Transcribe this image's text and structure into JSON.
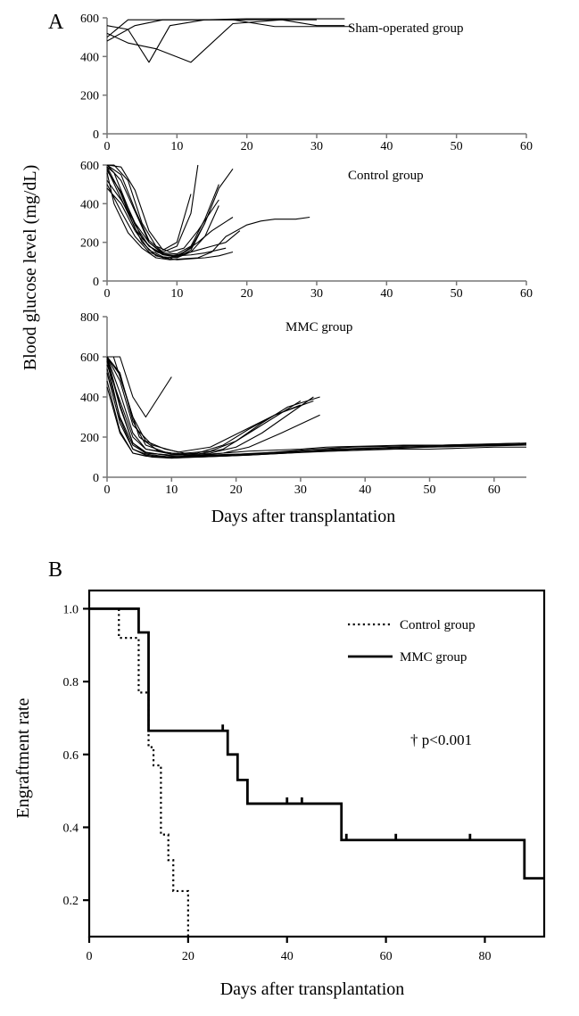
{
  "panelA": {
    "type": "multi-line",
    "panel_label": "A",
    "panel_label_fontsize": 24,
    "ylabel": "Blood glucose level (mg/dL)",
    "ylabel_fontsize": 20,
    "xlabel": "Days after transplantation",
    "xlabel_fontsize": 20,
    "axis_fontsize": 14,
    "axis_color": "#777777",
    "axis_width": 1.5,
    "line_color": "#000000",
    "line_width": 1.1,
    "background_color": "#ffffff",
    "subplots": [
      {
        "title": "Sham-operated group",
        "xlim": [
          0,
          60
        ],
        "xtick_step": 10,
        "ylim": [
          0,
          600
        ],
        "ytick_step": 200,
        "series": [
          {
            "x": [
              0,
              3,
              6,
              9,
              14,
              20,
              25,
              30,
              34
            ],
            "y": [
              560,
              540,
              370,
              560,
              590,
              595,
              595,
              595,
              595
            ]
          },
          {
            "x": [
              0,
              3,
              7,
              12,
              18,
              25,
              30,
              34
            ],
            "y": [
              520,
              470,
              440,
              370,
              570,
              590,
              560,
              560
            ]
          },
          {
            "x": [
              0,
              3,
              7,
              12,
              18,
              24,
              30
            ],
            "y": [
              500,
              590,
              590,
              590,
              590,
              590,
              590
            ]
          },
          {
            "x": [
              0,
              4,
              8,
              12,
              18,
              24,
              30,
              35
            ],
            "y": [
              480,
              560,
              590,
              590,
              590,
              555,
              555,
              555
            ]
          }
        ]
      },
      {
        "title": "Control group",
        "xlim": [
          0,
          60
        ],
        "xtick_step": 10,
        "ylim": [
          0,
          600
        ],
        "ytick_step": 200,
        "series": [
          {
            "x": [
              0,
              1,
              3,
              5,
              7,
              9,
              11,
              13,
              15,
              17,
              20,
              22,
              24,
              27,
              29
            ],
            "y": [
              560,
              400,
              250,
              170,
              120,
              110,
              115,
              120,
              150,
              230,
              290,
              310,
              320,
              320,
              330
            ]
          },
          {
            "x": [
              0,
              2,
              4,
              6,
              8,
              10,
              12,
              14,
              16,
              18
            ],
            "y": [
              600,
              520,
              360,
              200,
              140,
              120,
              160,
              300,
              480,
              580
            ]
          },
          {
            "x": [
              0,
              1,
              3,
              5,
              7,
              9,
              11,
              13,
              15,
              17,
              19
            ],
            "y": [
              590,
              560,
              380,
              220,
              150,
              130,
              140,
              160,
              180,
              200,
              260
            ]
          },
          {
            "x": [
              0,
              2,
              4,
              6,
              8,
              10,
              12,
              13
            ],
            "y": [
              600,
              550,
              370,
              210,
              150,
              180,
              350,
              600
            ]
          },
          {
            "x": [
              0,
              2,
              4,
              6,
              8,
              10,
              12,
              14,
              16
            ],
            "y": [
              480,
              400,
              260,
              160,
              125,
              120,
              150,
              230,
              390
            ]
          },
          {
            "x": [
              0,
              2,
              4,
              6,
              8,
              10,
              12,
              14,
              17
            ],
            "y": [
              590,
              450,
              270,
              180,
              140,
              130,
              135,
              145,
              170
            ]
          },
          {
            "x": [
              0,
              2,
              4,
              6,
              8,
              10,
              12,
              14,
              16
            ],
            "y": [
              520,
              420,
              300,
              200,
              145,
              140,
              180,
              320,
              500
            ]
          },
          {
            "x": [
              0,
              3,
              5,
              7,
              9,
              11,
              13,
              15,
              18
            ],
            "y": [
              580,
              350,
              200,
              130,
              115,
              150,
              200,
              260,
              330
            ]
          },
          {
            "x": [
              0,
              2,
              4,
              6,
              8,
              10,
              12
            ],
            "y": [
              600,
              590,
              470,
              260,
              160,
              200,
              450
            ]
          },
          {
            "x": [
              0,
              2,
              4,
              6,
              8,
              10,
              12,
              14,
              16,
              18
            ],
            "y": [
              500,
              360,
              230,
              150,
              120,
              110,
              115,
              120,
              130,
              150
            ]
          },
          {
            "x": [
              0,
              1,
              3,
              5,
              7,
              9,
              11,
              13,
              16
            ],
            "y": [
              600,
              600,
              520,
              300,
              180,
              150,
              170,
              260,
              420
            ]
          },
          {
            "x": [
              0,
              2,
              4,
              6,
              8,
              10,
              12,
              14
            ],
            "y": [
              570,
              460,
              290,
              180,
              135,
              125,
              170,
              300
            ]
          }
        ]
      },
      {
        "title": "MMC group",
        "xlim": [
          0,
          65
        ],
        "xtick_step": 10,
        "ylim": [
          0,
          800
        ],
        "ytick_step": 200,
        "series": [
          {
            "x": [
              0,
              2,
              4,
              6,
              9,
              12,
              15,
              20,
              25,
              30,
              35,
              40,
              45,
              50,
              55,
              60,
              65
            ],
            "y": [
              580,
              290,
              140,
              110,
              100,
              105,
              110,
              115,
              120,
              125,
              130,
              135,
              140,
              140,
              145,
              150,
              150
            ]
          },
          {
            "x": [
              0,
              2,
              4,
              6,
              10,
              14,
              18,
              22,
              26,
              30,
              34,
              40,
              46,
              52,
              58,
              64
            ],
            "y": [
              600,
              360,
              170,
              120,
              110,
              110,
              120,
              130,
              135,
              140,
              150,
              155,
              160,
              160,
              165,
              170
            ]
          },
          {
            "x": [
              0,
              2,
              4,
              6,
              9,
              12,
              16,
              20,
              24,
              28,
              32
            ],
            "y": [
              600,
              520,
              280,
              160,
              125,
              110,
              120,
              150,
              220,
              310,
              400
            ]
          },
          {
            "x": [
              0,
              1,
              3,
              5,
              8,
              12,
              16,
              20,
              25,
              30,
              35,
              40,
              45,
              50,
              55,
              60,
              65
            ],
            "y": [
              600,
              600,
              400,
              200,
              130,
              110,
              105,
              110,
              120,
              130,
              140,
              145,
              150,
              150,
              155,
              160,
              160
            ]
          },
          {
            "x": [
              0,
              2,
              4,
              6,
              10,
              14,
              18,
              22,
              26,
              30
            ],
            "y": [
              540,
              300,
              160,
              120,
              110,
              120,
              160,
              240,
              310,
              360
            ]
          },
          {
            "x": [
              0,
              2,
              4,
              7,
              10,
              13,
              16,
              20,
              24,
              28,
              32,
              38,
              45,
              52,
              59,
              65
            ],
            "y": [
              480,
              230,
              120,
              100,
              95,
              100,
              105,
              110,
              120,
              130,
              140,
              150,
              155,
              160,
              165,
              170
            ]
          },
          {
            "x": [
              0,
              2,
              4,
              6,
              9,
              12,
              16,
              20,
              24,
              28,
              33
            ],
            "y": [
              600,
              510,
              300,
              180,
              140,
              120,
              130,
              180,
              270,
              350,
              400
            ]
          },
          {
            "x": [
              0,
              2,
              4,
              6,
              10,
              14,
              18,
              22,
              27,
              33
            ],
            "y": [
              600,
              420,
              220,
              140,
              115,
              110,
              120,
              150,
              220,
              310
            ]
          },
          {
            "x": [
              0,
              2,
              4,
              6,
              10,
              14,
              18,
              22,
              28,
              35,
              42,
              50,
              58,
              65
            ],
            "y": [
              450,
              220,
              120,
              105,
              95,
              100,
              105,
              110,
              120,
              130,
              140,
              150,
              155,
              160
            ]
          },
          {
            "x": [
              0,
              2,
              4,
              6,
              10
            ],
            "y": [
              600,
              600,
              400,
              300,
              500
            ]
          },
          {
            "x": [
              0,
              2,
              4,
              6,
              10,
              14,
              18,
              22,
              28,
              35,
              42,
              50,
              58,
              65
            ],
            "y": [
              590,
              350,
              170,
              125,
              105,
              100,
              105,
              110,
              120,
              135,
              145,
              155,
              160,
              165
            ]
          },
          {
            "x": [
              0,
              2,
              4,
              6,
              10,
              14,
              18,
              22,
              26,
              30
            ],
            "y": [
              560,
              380,
              200,
              140,
              120,
              115,
              140,
              220,
              300,
              380
            ]
          },
          {
            "x": [
              0,
              2,
              4,
              6,
              10,
              14,
              18,
              23,
              30,
              38,
              46,
              55,
              65
            ],
            "y": [
              520,
              270,
              140,
              115,
              100,
              105,
              110,
              120,
              130,
              140,
              150,
              160,
              170
            ]
          },
          {
            "x": [
              0,
              2,
              4,
              7,
              11,
              16,
              21,
              26,
              32
            ],
            "y": [
              600,
              480,
              260,
              160,
              125,
              150,
              230,
              310,
              380
            ]
          }
        ]
      }
    ]
  },
  "panelB": {
    "type": "survival-step",
    "panel_label": "B",
    "panel_label_fontsize": 24,
    "xlabel": "Days after transplantation",
    "xlabel_fontsize": 20,
    "ylabel": "Engraftment rate",
    "ylabel_fontsize": 20,
    "axis_fontsize": 14,
    "axis_color": "#000000",
    "axis_width": 2.2,
    "xlim": [
      0,
      92
    ],
    "xtick_step": 20,
    "ylim": [
      0.1,
      1.05
    ],
    "ytick_values": [
      0.2,
      0.4,
      0.6,
      0.8,
      1.0
    ],
    "background_color": "#ffffff",
    "significance": "†  p<0.001",
    "significance_fontsize": 17,
    "legend": [
      {
        "label": "Control group",
        "style": "dotted"
      },
      {
        "label": "MMC group",
        "style": "solid"
      }
    ],
    "legend_fontsize": 15,
    "series": {
      "control": {
        "color": "#000000",
        "width": 2.2,
        "dash": "2.2,3.4",
        "steps": [
          {
            "x": 0,
            "y": 1.0
          },
          {
            "x": 6,
            "y": 1.0
          },
          {
            "x": 6,
            "y": 0.92
          },
          {
            "x": 10,
            "y": 0.92
          },
          {
            "x": 10,
            "y": 0.77
          },
          {
            "x": 12,
            "y": 0.77
          },
          {
            "x": 12,
            "y": 0.62
          },
          {
            "x": 13,
            "y": 0.62
          },
          {
            "x": 13,
            "y": 0.57
          },
          {
            "x": 14.5,
            "y": 0.57
          },
          {
            "x": 14.5,
            "y": 0.38
          },
          {
            "x": 16,
            "y": 0.38
          },
          {
            "x": 16,
            "y": 0.31
          },
          {
            "x": 17,
            "y": 0.31
          },
          {
            "x": 17,
            "y": 0.225
          },
          {
            "x": 20,
            "y": 0.225
          },
          {
            "x": 20,
            "y": 0.1
          }
        ]
      },
      "mmc": {
        "color": "#000000",
        "width": 2.8,
        "dash": "none",
        "steps": [
          {
            "x": 0,
            "y": 1.0
          },
          {
            "x": 10,
            "y": 1.0
          },
          {
            "x": 10,
            "y": 0.935
          },
          {
            "x": 12,
            "y": 0.935
          },
          {
            "x": 12,
            "y": 0.665
          },
          {
            "x": 28,
            "y": 0.665
          },
          {
            "x": 28,
            "y": 0.6
          },
          {
            "x": 30,
            "y": 0.6
          },
          {
            "x": 30,
            "y": 0.53
          },
          {
            "x": 32,
            "y": 0.53
          },
          {
            "x": 32,
            "y": 0.465
          },
          {
            "x": 51,
            "y": 0.465
          },
          {
            "x": 51,
            "y": 0.365
          },
          {
            "x": 88,
            "y": 0.365
          },
          {
            "x": 88,
            "y": 0.26
          },
          {
            "x": 92,
            "y": 0.26
          }
        ],
        "censor_ticks_x": [
          27,
          40,
          43,
          52,
          62,
          77
        ]
      }
    }
  }
}
